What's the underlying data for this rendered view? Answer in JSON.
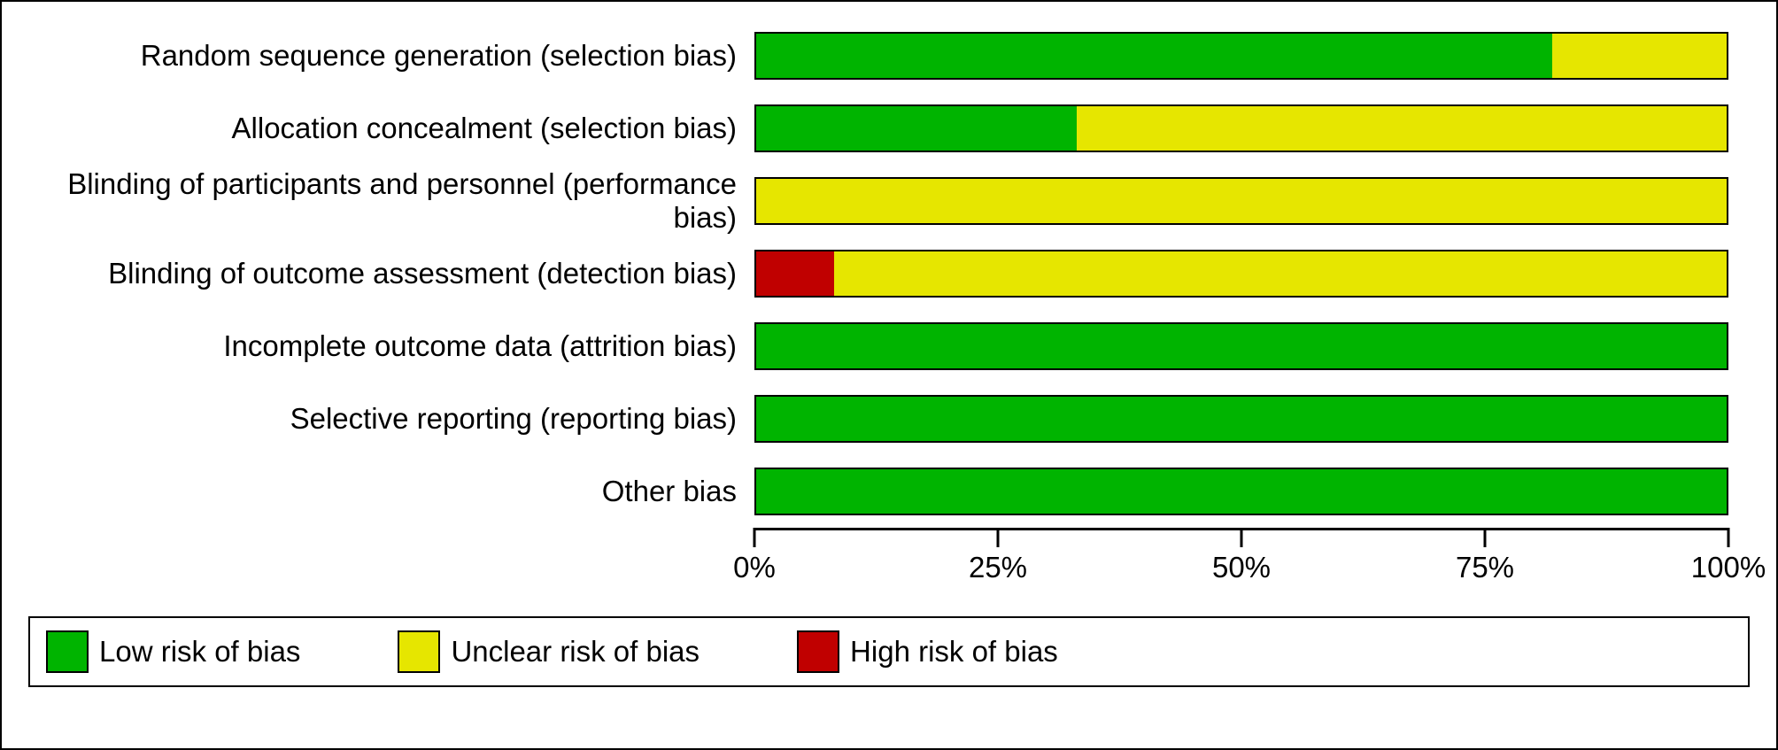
{
  "chart": {
    "type": "stacked-horizontal-bar",
    "background_color": "#ffffff",
    "border_color": "#000000",
    "bar_border_color": "#000000",
    "label_fontsize": 33,
    "xlim": [
      0,
      100
    ],
    "xtick_step": 25,
    "xtick_labels": [
      "0%",
      "25%",
      "50%",
      "75%",
      "100%"
    ],
    "colors": {
      "low": "#00b400",
      "unclear": "#e6e600",
      "high": "#c00000"
    },
    "categories": [
      {
        "label": "Random sequence generation (selection bias)",
        "segments": [
          {
            "risk": "low",
            "value": 82
          },
          {
            "risk": "unclear",
            "value": 18
          }
        ]
      },
      {
        "label": "Allocation concealment (selection bias)",
        "segments": [
          {
            "risk": "low",
            "value": 33
          },
          {
            "risk": "unclear",
            "value": 67
          }
        ]
      },
      {
        "label": "Blinding of participants and personnel (performance bias)",
        "segments": [
          {
            "risk": "unclear",
            "value": 100
          }
        ]
      },
      {
        "label": "Blinding of outcome assessment (detection bias)",
        "segments": [
          {
            "risk": "high",
            "value": 8
          },
          {
            "risk": "unclear",
            "value": 92
          }
        ]
      },
      {
        "label": "Incomplete outcome data (attrition bias)",
        "segments": [
          {
            "risk": "low",
            "value": 100
          }
        ]
      },
      {
        "label": "Selective reporting (reporting bias)",
        "segments": [
          {
            "risk": "low",
            "value": 100
          }
        ]
      },
      {
        "label": "Other bias",
        "segments": [
          {
            "risk": "low",
            "value": 100
          }
        ]
      }
    ],
    "legend": [
      {
        "risk": "low",
        "label": "Low risk of bias"
      },
      {
        "risk": "unclear",
        "label": "Unclear risk of bias"
      },
      {
        "risk": "high",
        "label": "High risk of bias"
      }
    ]
  }
}
